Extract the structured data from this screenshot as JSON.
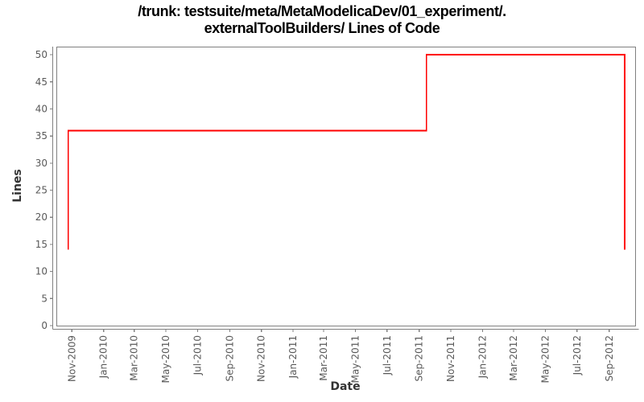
{
  "title": {
    "line1": "/trunk: testsuite/meta/MetaModelicaDev/01_experiment/.",
    "line2": "externalToolBuilders/ Lines of Code"
  },
  "chart_data": {
    "type": "line",
    "step": true,
    "title": "/trunk: testsuite/meta/MetaModelicaDev/01_experiment/.externalToolBuilders/ Lines of Code",
    "xlabel": "Date",
    "ylabel": "Lines",
    "grid": false,
    "legend": "none",
    "x_axis": {
      "range": [
        "2009-10-02",
        "2012-10-21"
      ],
      "tick_labels": [
        "Nov-2009",
        "Jan-2010",
        "Mar-2010",
        "May-2010",
        "Jul-2010",
        "Sep-2010",
        "Nov-2010",
        "Jan-2011",
        "Mar-2011",
        "May-2011",
        "Jul-2011",
        "Sep-2011",
        "Nov-2011",
        "Jan-2012",
        "Mar-2012",
        "May-2012",
        "Jul-2012",
        "Sep-2012"
      ]
    },
    "y_axis": {
      "range": [
        0,
        51.5
      ],
      "ticks": [
        0,
        5,
        10,
        15,
        20,
        25,
        30,
        35,
        40,
        45,
        50
      ]
    },
    "series": [
      {
        "name": "Lines of Code",
        "color": "#ff0000",
        "points": [
          {
            "date": "2009-10-25",
            "value": 14
          },
          {
            "date": "2009-10-25",
            "value": 36
          },
          {
            "date": "2011-09-15",
            "value": 36
          },
          {
            "date": "2011-09-15",
            "value": 50
          },
          {
            "date": "2012-10-01",
            "value": 50
          },
          {
            "date": "2012-10-01",
            "value": 14
          }
        ]
      }
    ]
  },
  "colors": {
    "line": "#ff0000",
    "axis": "#808080",
    "tick_label": "#595959",
    "axis_label": "#333333",
    "title": "#000000",
    "background": "#ffffff"
  }
}
